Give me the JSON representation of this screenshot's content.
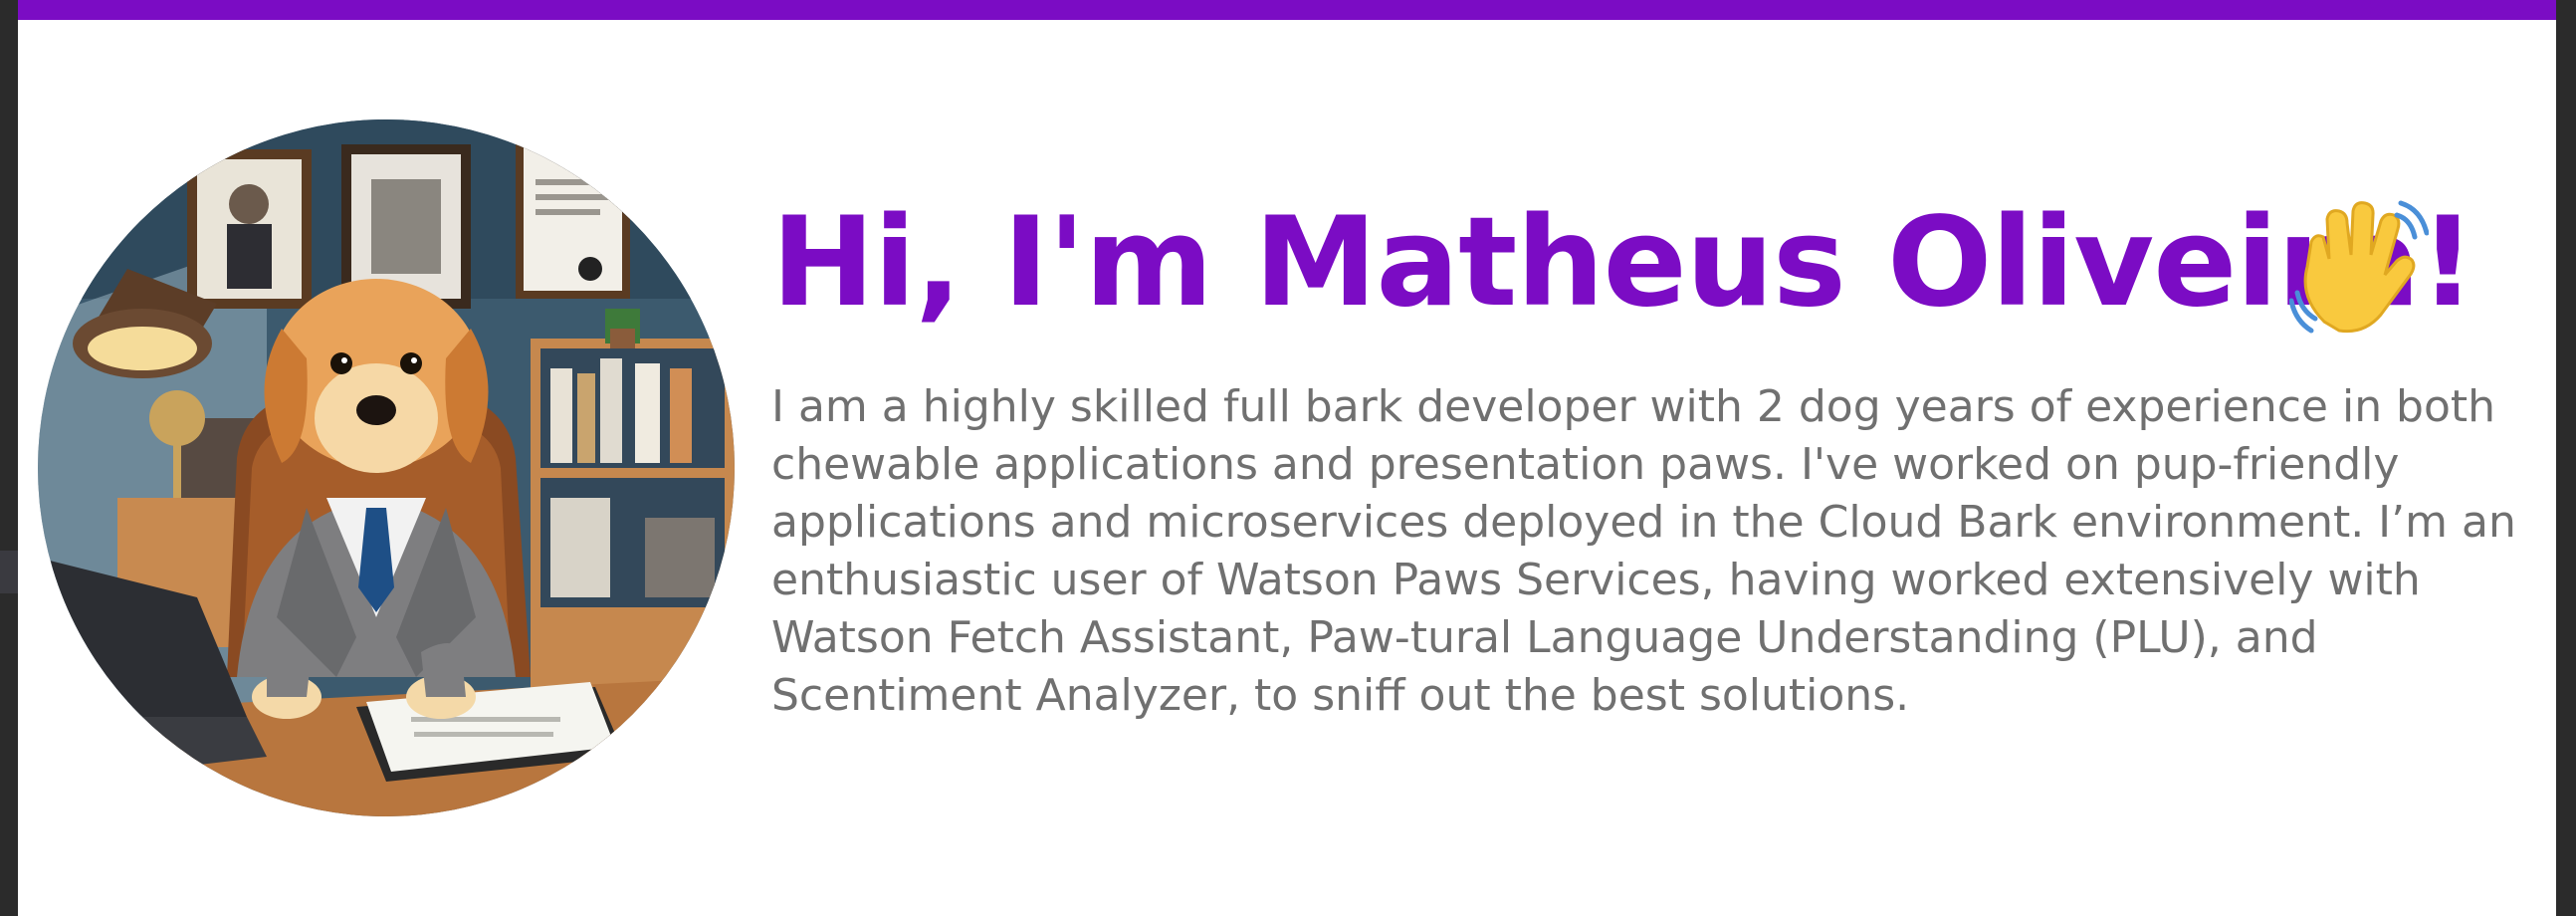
{
  "hero": {
    "title": "Hi, I'm Matheus Oliveira!",
    "bio": "I am a highly skilled full bark developer with 2 dog years of experience in both chewable applications and presentation paws. I've worked on pup-friendly applications and microservices deployed in the Cloud Bark environment. I’m an enthusiastic user of Watson Paws Services, having worked extensively with Watson Fetch Assistant, Paw-tural Language Understanding (PLU), and Scentiment Analyzer, to sniff out the best solutions.",
    "avatar": "dog-in-suit-at-desk",
    "wave_icon": "waving-hand-icon"
  },
  "colors": {
    "accent": "#7b0cc4",
    "body_text": "#707070",
    "background": "#ffffff"
  }
}
